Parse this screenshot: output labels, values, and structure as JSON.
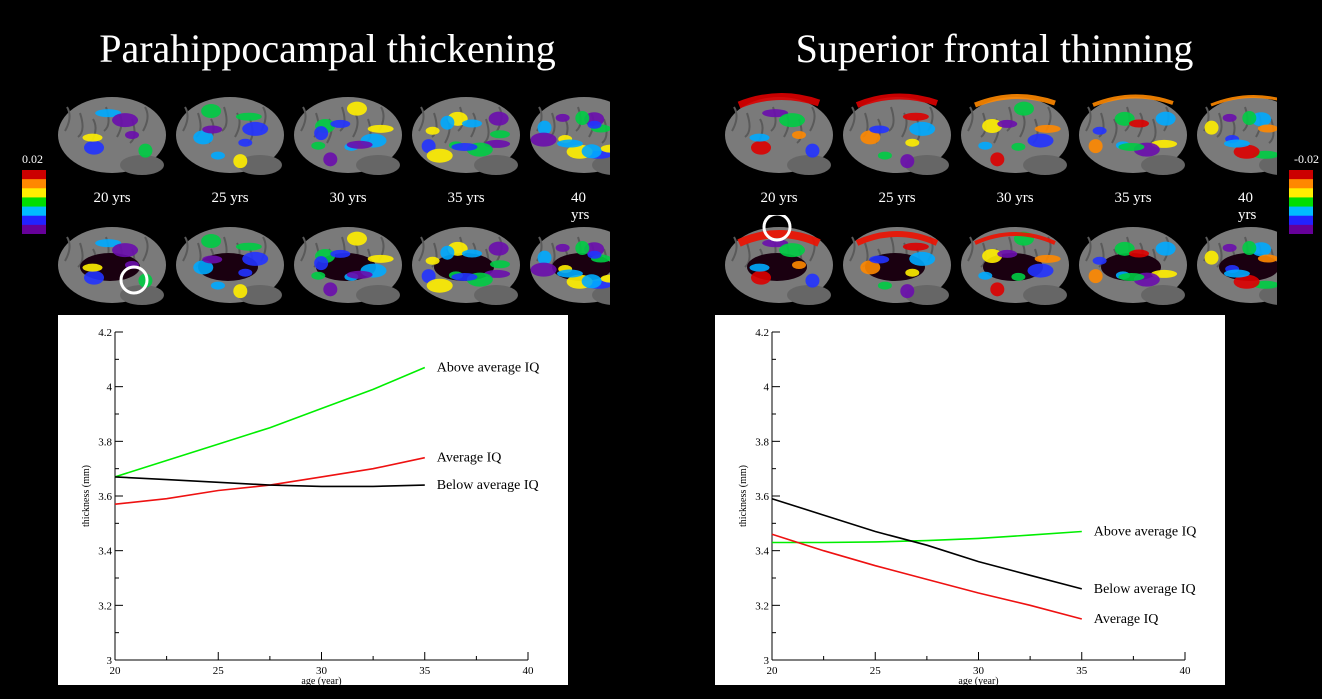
{
  "panels": [
    {
      "title": "Parahippocampal thickening",
      "colorbar_label": "0.02",
      "age_labels": [
        "20 yrs",
        "25 yrs",
        "30 yrs",
        "35 yrs",
        "40 yrs"
      ]
    },
    {
      "title": "Superior frontal thinning",
      "colorbar_label": "-0.02",
      "age_labels": [
        "20 yrs",
        "25 yrs",
        "30 yrs",
        "35 yrs",
        "40 yrs"
      ]
    }
  ],
  "colors": {
    "background": "#000000",
    "brain_gray": "#7a7a7a",
    "above": "#00ee00",
    "average": "#ee1111",
    "below": "#000000",
    "circle": "#ffffff"
  },
  "colorbar_colors": [
    "#cc0000",
    "#ff8800",
    "#ffee00",
    "#00dd00",
    "#00bbff",
    "#2222ff",
    "#660099"
  ],
  "chart_data": [
    {
      "type": "line",
      "xlabel": "age (year)",
      "ylabel": "thickness (mm)",
      "xlim": [
        20,
        40
      ],
      "ylim": [
        3,
        4.2
      ],
      "xticks": [
        20,
        25,
        30,
        35,
        40
      ],
      "yticks": [
        3,
        3.2,
        3.4,
        3.6,
        3.8,
        4,
        4.2
      ],
      "ytick_labels": [
        "3",
        "3.2",
        "3.4",
        "3.6",
        "3.8",
        "4",
        "4.2"
      ],
      "series": [
        {
          "name": "Above average IQ",
          "color": "#00ee00",
          "x": [
            20,
            22.5,
            25,
            27.5,
            30,
            32.5,
            35
          ],
          "y": [
            3.67,
            3.73,
            3.79,
            3.85,
            3.92,
            3.99,
            4.07
          ]
        },
        {
          "name": "Average IQ",
          "color": "#ee1111",
          "x": [
            20,
            22.5,
            25,
            27.5,
            30,
            32.5,
            35
          ],
          "y": [
            3.57,
            3.59,
            3.62,
            3.64,
            3.67,
            3.7,
            3.74
          ]
        },
        {
          "name": "Below average IQ",
          "color": "#000000",
          "x": [
            20,
            22.5,
            25,
            27.5,
            30,
            32.5,
            35
          ],
          "y": [
            3.67,
            3.66,
            3.65,
            3.64,
            3.635,
            3.635,
            3.64
          ]
        }
      ]
    },
    {
      "type": "line",
      "xlabel": "age (year)",
      "ylabel": "thickness (mm)",
      "xlim": [
        20,
        40
      ],
      "ylim": [
        3,
        4.2
      ],
      "xticks": [
        20,
        25,
        30,
        35,
        40
      ],
      "yticks": [
        3,
        3.2,
        3.4,
        3.6,
        3.8,
        4,
        4.2
      ],
      "ytick_labels": [
        "3",
        "3.2",
        "3.4",
        "3.6",
        "3.8",
        "4",
        "4.2"
      ],
      "series": [
        {
          "name": "Above average IQ",
          "color": "#00ee00",
          "x": [
            20,
            22.5,
            25,
            27.5,
            30,
            32.5,
            35
          ],
          "y": [
            3.43,
            3.43,
            3.432,
            3.437,
            3.445,
            3.457,
            3.47
          ]
        },
        {
          "name": "Below average IQ",
          "color": "#000000",
          "x": [
            20,
            22.5,
            25,
            27.5,
            30,
            32.5,
            35
          ],
          "y": [
            3.59,
            3.53,
            3.47,
            3.42,
            3.36,
            3.31,
            3.26
          ]
        },
        {
          "name": "Average IQ",
          "color": "#ee1111",
          "x": [
            20,
            22.5,
            25,
            27.5,
            30,
            32.5,
            35
          ],
          "y": [
            3.46,
            3.4,
            3.345,
            3.295,
            3.245,
            3.2,
            3.15
          ]
        }
      ]
    }
  ]
}
